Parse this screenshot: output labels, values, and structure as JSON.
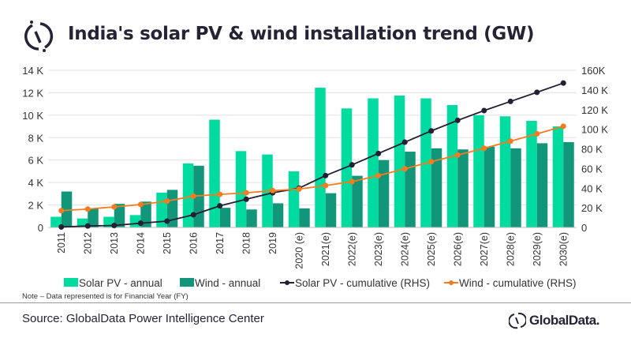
{
  "header": {
    "title": "India's solar PV & wind installation trend (GW)"
  },
  "footer": {
    "note": "Note – Data represented is for Financial Year (FY)",
    "source": "Source: GlobalData Power Intelligence Center",
    "brand": "GlobalData."
  },
  "colors": {
    "solar_annual": "#00DBA0",
    "wind_annual": "#11967A",
    "solar_cum": "#231F35",
    "wind_cum": "#F47B20"
  },
  "chart_data": {
    "type": "bar",
    "title": "India's solar PV & wind installation trend (GW)",
    "categories": [
      "2011",
      "2012",
      "2013",
      "2014",
      "2015",
      "2016",
      "2017",
      "2018",
      "2019",
      "2020 (e)",
      "2021(e)",
      "2022(e)",
      "2023(e)",
      "2024(e)",
      "2025(e)",
      "2026(e)",
      "2027(e)",
      "2028(e)",
      "2029(e)",
      "2030(e)"
    ],
    "y_left": {
      "range": [
        0,
        14000
      ],
      "ticks": [
        "0",
        "2 K",
        "4 K",
        "6 K",
        "8 K",
        "10 K",
        "12 K",
        "14 K"
      ]
    },
    "y_right": {
      "range": [
        0,
        160000
      ],
      "ticks": [
        "0",
        "20 K",
        "40 K",
        "60 K",
        "80 K",
        "100 K",
        "120 K",
        "140 K",
        "160K"
      ]
    },
    "grid": true,
    "legend": "bottom",
    "series": [
      {
        "name": "Solar PV - annual",
        "type": "bar",
        "axis": "left",
        "values": [
          950,
          800,
          950,
          1100,
          3100,
          5700,
          9600,
          6800,
          6500,
          5000,
          12450,
          10600,
          11500,
          11750,
          11500,
          10900,
          10000,
          9900,
          9500,
          9000
        ]
      },
      {
        "name": "Wind - annual",
        "type": "bar",
        "axis": "left",
        "values": [
          3200,
          1700,
          2100,
          2300,
          3350,
          5500,
          1750,
          1600,
          2150,
          1700,
          3050,
          4600,
          6000,
          6750,
          7050,
          6950,
          7200,
          7050,
          7500,
          7600
        ]
      },
      {
        "name": "Solar PV - cumulative (RHS)",
        "type": "line",
        "axis": "right",
        "values": [
          500,
          1500,
          2000,
          4300,
          6400,
          12900,
          22000,
          28700,
          35300,
          40000,
          52800,
          63700,
          75300,
          86800,
          98300,
          109000,
          119000,
          128300,
          137600,
          147000
        ]
      },
      {
        "name": "Wind - cumulative (RHS)",
        "type": "line",
        "axis": "right",
        "values": [
          17100,
          18700,
          20900,
          23300,
          26800,
          31900,
          33700,
          35300,
          37500,
          39100,
          42600,
          46600,
          52800,
          59700,
          66900,
          73700,
          80600,
          87800,
          95300,
          103000
        ]
      }
    ]
  }
}
